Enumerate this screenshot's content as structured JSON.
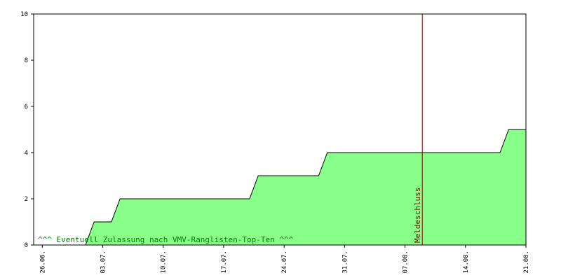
{
  "chart_data": {
    "type": "area",
    "x": [
      -1,
      5,
      6,
      8,
      9,
      24,
      25,
      32,
      33,
      53,
      54,
      56
    ],
    "values": [
      0,
      0,
      1,
      1,
      2,
      2,
      3,
      3,
      4,
      4,
      5,
      5
    ],
    "color": "#88ff88",
    "line_color": "#000000",
    "xlim": [
      -1,
      56
    ],
    "xticks": [
      {
        "value": 0,
        "label": "26.06."
      },
      {
        "value": 7,
        "label": "03.07."
      },
      {
        "value": 14,
        "label": "10.07."
      },
      {
        "value": 21,
        "label": "17.07."
      },
      {
        "value": 28,
        "label": "24.07."
      },
      {
        "value": 35,
        "label": "31.07."
      },
      {
        "value": 42,
        "label": "07.08."
      },
      {
        "value": 49,
        "label": "14.08."
      },
      {
        "value": 56,
        "label": "21.08."
      }
    ],
    "ylim": [
      0,
      10
    ],
    "yticks": [
      0,
      2,
      4,
      6,
      8,
      10
    ],
    "marker_line": {
      "x": 44,
      "label": "Meldeschluss",
      "color": "#800000"
    },
    "annotation": {
      "text": "^^^ Eventuell Zulassung nach VMV-Ranglisten-Top-Ten ^^^",
      "color": "#008000"
    }
  }
}
